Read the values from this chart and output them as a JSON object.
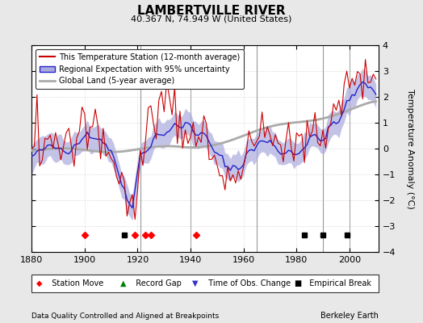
{
  "title": "LAMBERTVILLE RIVER",
  "subtitle": "40.367 N, 74.949 W (United States)",
  "xlabel_note": "Data Quality Controlled and Aligned at Breakpoints",
  "credit": "Berkeley Earth",
  "ylim": [
    -4,
    4
  ],
  "xlim": [
    1880,
    2011
  ],
  "xticks": [
    1880,
    1900,
    1920,
    1940,
    1960,
    1980,
    2000
  ],
  "yticks": [
    -4,
    -3,
    -2,
    -1,
    0,
    1,
    2,
    3,
    4
  ],
  "ylabel": "Temperature Anomaly (°C)",
  "station_color": "#cc0000",
  "regional_color": "#2222cc",
  "regional_fill": "#aaaadd",
  "global_color": "#aaaaaa",
  "legend_entries": [
    "This Temperature Station (12-month average)",
    "Regional Expectation with 95% uncertainty",
    "Global Land (5-year average)"
  ],
  "vertical_lines": [
    1921,
    1940,
    1965,
    1990,
    2000
  ],
  "marker_events": {
    "station_move": [
      1900,
      1919,
      1923,
      1925,
      1942
    ],
    "record_gap": [],
    "time_obs_change": [],
    "empirical_break": [
      1915,
      1983,
      1990,
      1999
    ]
  },
  "background_color": "#e8e8e8",
  "plot_bg": "#ffffff"
}
